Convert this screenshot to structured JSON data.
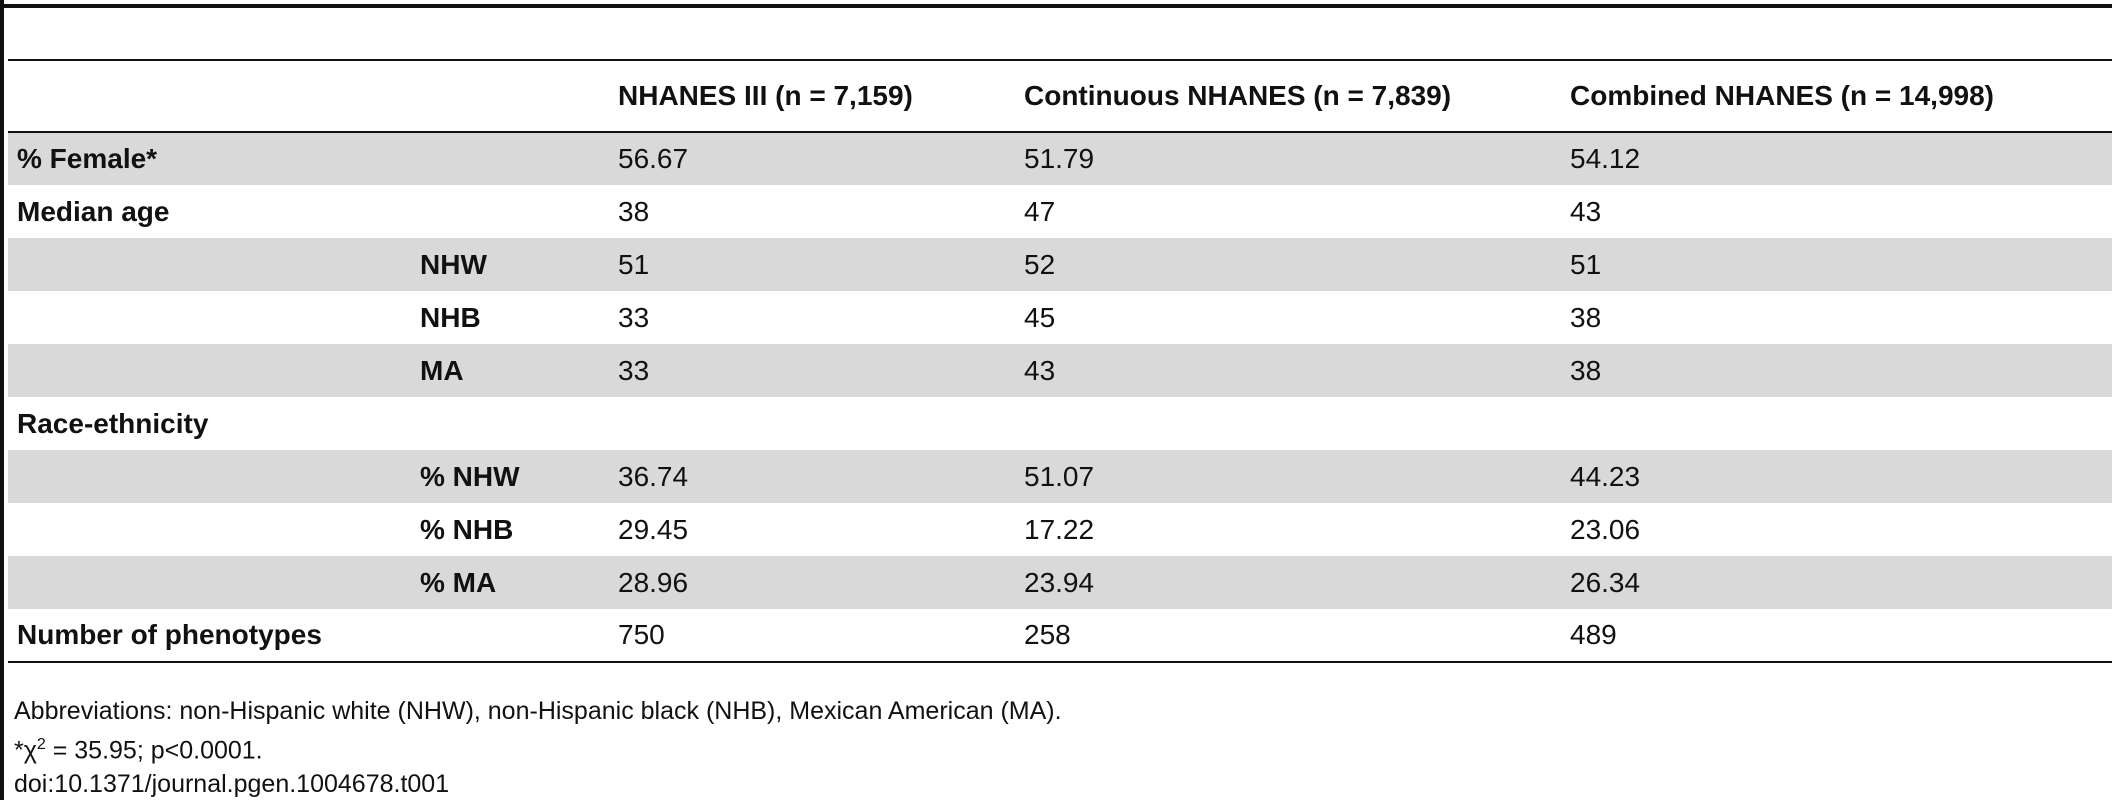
{
  "table": {
    "headers": [
      "",
      "",
      "NHANES III (n = 7,159)",
      "Continuous NHANES (n = 7,839)",
      "Combined NHANES (n = 14,998)"
    ],
    "rows": [
      {
        "label": "% Female*",
        "sub": "",
        "values": [
          "56.67",
          "51.79",
          "54.12"
        ],
        "shaded": true
      },
      {
        "label": "Median age",
        "sub": "",
        "values": [
          "38",
          "47",
          "43"
        ],
        "shaded": false
      },
      {
        "label": "",
        "sub": "NHW",
        "values": [
          "51",
          "52",
          "51"
        ],
        "shaded": true
      },
      {
        "label": "",
        "sub": "NHB",
        "values": [
          "33",
          "45",
          "38"
        ],
        "shaded": false
      },
      {
        "label": "",
        "sub": "MA",
        "values": [
          "33",
          "43",
          "38"
        ],
        "shaded": true
      },
      {
        "label": "Race-ethnicity",
        "sub": "",
        "values": [
          "",
          "",
          ""
        ],
        "shaded": false
      },
      {
        "label": "",
        "sub": "% NHW",
        "values": [
          "36.74",
          "51.07",
          "44.23"
        ],
        "shaded": true
      },
      {
        "label": "",
        "sub": "% NHB",
        "values": [
          "29.45",
          "17.22",
          "23.06"
        ],
        "shaded": false
      },
      {
        "label": "",
        "sub": "% MA",
        "values": [
          "28.96",
          "23.94",
          "26.34"
        ],
        "shaded": true
      },
      {
        "label": "Number of phenotypes",
        "sub": "",
        "values": [
          "750",
          "258",
          "489"
        ],
        "shaded": false
      }
    ]
  },
  "footnotes": {
    "abbreviations": "Abbreviations: non-Hispanic white (NHW), non-Hispanic black (NHB), Mexican American (MA).",
    "stat_prefix": "*χ",
    "stat_sup": "2",
    "stat_rest": " = 35.95; p<0.0001.",
    "doi": "doi:10.1371/journal.pgen.1004678.t001"
  }
}
